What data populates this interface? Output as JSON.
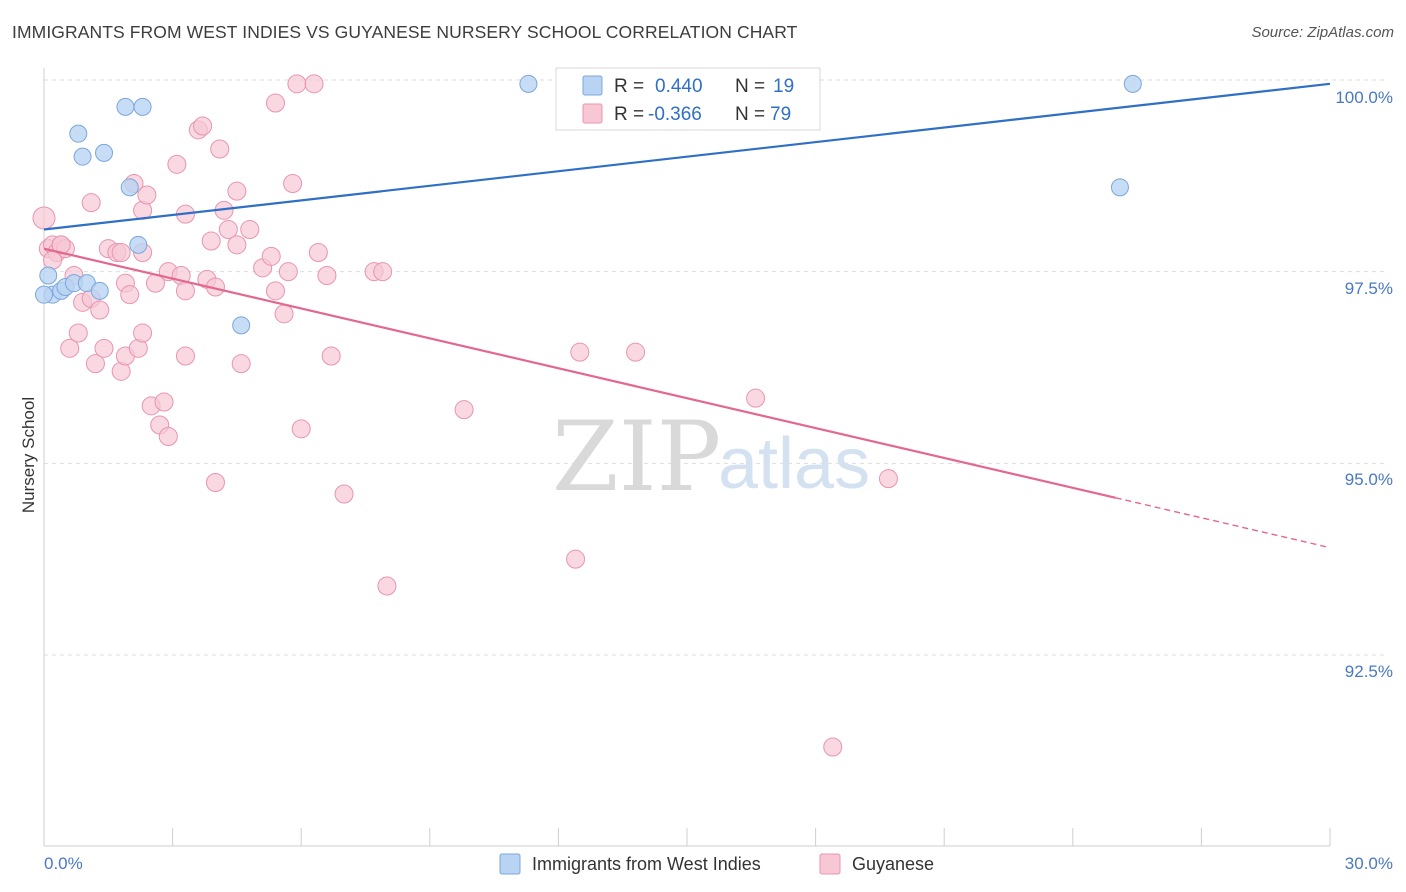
{
  "title": "IMMIGRANTS FROM WEST INDIES VS GUYANESE NURSERY SCHOOL CORRELATION CHART",
  "source": "Source: ZipAtlas.com",
  "watermark": {
    "zip": "ZIP",
    "atlas": "atlas"
  },
  "colors": {
    "blue_fill": "#b9d3f3",
    "blue_stroke": "#7ba7dc",
    "blue_line": "#2f6fc6",
    "pink_fill": "#f7c7d6",
    "pink_stroke": "#e895b0",
    "pink_line": "#e3678f",
    "grid": "#dedede",
    "axis_text": "#4a78c4"
  },
  "legend": {
    "rows": [
      {
        "r_label": "R =",
        "r_value": "0.440",
        "n_label": "N =",
        "n_value": "19"
      },
      {
        "r_label": "R =",
        "r_value": "-0.366",
        "n_label": "N =",
        "n_value": "79"
      }
    ]
  },
  "bottom_legend": [
    "Immigrants from West Indies",
    "Guyanese"
  ],
  "chart_data": {
    "type": "scatter",
    "title": "IMMIGRANTS FROM WEST INDIES VS GUYANESE NURSERY SCHOOL CORRELATION CHART",
    "xlabel": "",
    "ylabel": "Nursery School",
    "xlim": [
      0,
      30
    ],
    "ylim": [
      90.5,
      100.5
    ],
    "x_tick_labels": [
      "0.0%",
      "30.0%"
    ],
    "y_ticks": [
      92.5,
      95.0,
      97.5,
      100.0
    ],
    "y_tick_labels": [
      "92.5%",
      "95.0%",
      "97.5%",
      "100.0%"
    ],
    "grid": true,
    "series": [
      {
        "name": "Immigrants from West Indies",
        "color": "blue",
        "trend": {
          "x": [
            0,
            30
          ],
          "y": [
            98.05,
            99.95
          ]
        },
        "points": [
          [
            0.1,
            97.45
          ],
          [
            0.2,
            97.2
          ],
          [
            0.4,
            97.25
          ],
          [
            0.5,
            97.3
          ],
          [
            0.7,
            97.35
          ],
          [
            0.8,
            99.3
          ],
          [
            0.9,
            99.0
          ],
          [
            1.0,
            97.35
          ],
          [
            1.3,
            97.25
          ],
          [
            1.4,
            99.05
          ],
          [
            1.9,
            99.65
          ],
          [
            2.0,
            98.6
          ],
          [
            2.2,
            97.85
          ],
          [
            2.3,
            99.65
          ],
          [
            4.6,
            96.8
          ],
          [
            11.3,
            99.95
          ],
          [
            25.1,
            98.6
          ],
          [
            25.4,
            99.95
          ],
          [
            0.0,
            97.2
          ]
        ]
      },
      {
        "name": "Guyanese",
        "color": "pink",
        "trend": {
          "x": [
            0,
            25
          ],
          "y": [
            97.8,
            94.55
          ]
        },
        "trend_dashed": {
          "x": [
            25,
            30
          ],
          "y": [
            94.55,
            93.9
          ]
        },
        "points": [
          [
            0.0,
            98.2
          ],
          [
            0.1,
            97.8
          ],
          [
            0.2,
            97.85
          ],
          [
            0.3,
            97.75
          ],
          [
            0.4,
            97.85
          ],
          [
            0.5,
            97.8
          ],
          [
            0.6,
            96.5
          ],
          [
            0.7,
            97.45
          ],
          [
            0.8,
            96.7
          ],
          [
            0.9,
            97.1
          ],
          [
            1.1,
            97.15
          ],
          [
            1.1,
            98.4
          ],
          [
            1.2,
            96.3
          ],
          [
            1.3,
            97.0
          ],
          [
            1.4,
            96.5
          ],
          [
            1.5,
            97.8
          ],
          [
            1.7,
            97.75
          ],
          [
            1.8,
            96.2
          ],
          [
            1.9,
            96.4
          ],
          [
            1.9,
            97.35
          ],
          [
            2.0,
            97.2
          ],
          [
            2.1,
            98.65
          ],
          [
            2.2,
            96.5
          ],
          [
            2.3,
            97.75
          ],
          [
            2.3,
            98.3
          ],
          [
            2.3,
            96.7
          ],
          [
            2.4,
            98.5
          ],
          [
            2.5,
            95.75
          ],
          [
            2.6,
            97.35
          ],
          [
            2.7,
            95.5
          ],
          [
            2.8,
            95.8
          ],
          [
            2.9,
            95.35
          ],
          [
            2.9,
            97.5
          ],
          [
            3.1,
            98.9
          ],
          [
            3.2,
            97.45
          ],
          [
            3.3,
            97.25
          ],
          [
            3.3,
            96.4
          ],
          [
            3.3,
            98.25
          ],
          [
            3.6,
            99.35
          ],
          [
            3.7,
            99.4
          ],
          [
            3.8,
            97.4
          ],
          [
            3.9,
            97.9
          ],
          [
            4.0,
            97.3
          ],
          [
            4.0,
            94.75
          ],
          [
            4.1,
            99.1
          ],
          [
            4.2,
            98.3
          ],
          [
            4.3,
            98.05
          ],
          [
            4.5,
            97.85
          ],
          [
            4.5,
            98.55
          ],
          [
            4.6,
            96.3
          ],
          [
            4.8,
            98.05
          ],
          [
            5.1,
            97.55
          ],
          [
            5.3,
            97.7
          ],
          [
            5.4,
            97.25
          ],
          [
            5.4,
            99.7
          ],
          [
            5.6,
            96.95
          ],
          [
            5.7,
            97.5
          ],
          [
            5.8,
            98.65
          ],
          [
            5.9,
            99.95
          ],
          [
            6.0,
            95.45
          ],
          [
            6.3,
            99.95
          ],
          [
            6.4,
            97.75
          ],
          [
            6.6,
            97.45
          ],
          [
            6.7,
            96.4
          ],
          [
            7.0,
            94.6
          ],
          [
            7.7,
            97.5
          ],
          [
            7.9,
            97.5
          ],
          [
            8.0,
            93.4
          ],
          [
            9.8,
            95.7
          ],
          [
            12.4,
            93.75
          ],
          [
            12.5,
            96.45
          ],
          [
            13.8,
            96.45
          ],
          [
            16.6,
            95.85
          ],
          [
            17.3,
            99.95
          ],
          [
            18.4,
            91.3
          ],
          [
            19.7,
            94.8
          ],
          [
            0.2,
            97.65
          ],
          [
            0.4,
            97.85
          ],
          [
            1.8,
            97.75
          ]
        ]
      }
    ]
  }
}
